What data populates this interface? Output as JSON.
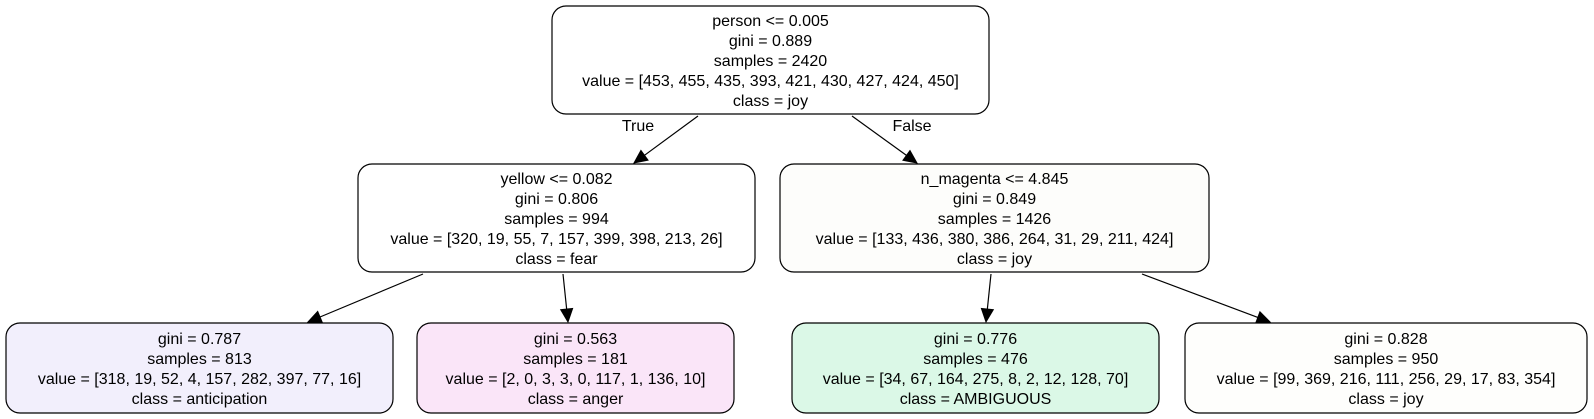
{
  "tree": {
    "nodes": {
      "root": {
        "lines": [
          "person <= 0.005",
          "gini = 0.889",
          "samples = 2420",
          "value = [453, 455, 435, 393, 421, 430, 427, 424, 450]",
          "class = joy"
        ],
        "fill": "#ffffff"
      },
      "left": {
        "lines": [
          "yellow <= 0.082",
          "gini = 0.806",
          "samples = 994",
          "value = [320, 19, 55, 7, 157, 399, 398, 213, 26]",
          "class = fear"
        ],
        "fill": "#ffffff"
      },
      "right": {
        "lines": [
          "n_magenta <= 4.845",
          "gini = 0.849",
          "samples = 1426",
          "value = [133, 436, 380, 386, 264, 31, 29, 211, 424]",
          "class = joy"
        ],
        "fill": "#fdfdfb"
      },
      "leaf_ll": {
        "lines": [
          "gini = 0.787",
          "samples = 813",
          "value = [318, 19, 52, 4, 157, 282, 397, 77, 16]",
          "class = anticipation"
        ],
        "fill": "#f2effc"
      },
      "leaf_lr": {
        "lines": [
          "gini = 0.563",
          "samples = 181",
          "value = [2, 0, 3, 3, 0, 117, 1, 136, 10]",
          "class = anger"
        ],
        "fill": "#fae5f8"
      },
      "leaf_rl": {
        "lines": [
          "gini = 0.776",
          "samples = 476",
          "value = [34, 67, 164, 275, 8, 2, 12, 128, 70]",
          "class = AMBIGUOUS"
        ],
        "fill": "#dbf8e7"
      },
      "leaf_rr": {
        "lines": [
          "gini = 0.828",
          "samples = 950",
          "value = [99, 369, 216, 111, 256, 29, 17, 83, 354]",
          "class = joy"
        ],
        "fill": "#fefefc"
      }
    },
    "edges": [
      {
        "from": "root",
        "to": "left",
        "label": "True"
      },
      {
        "from": "root",
        "to": "right",
        "label": "False"
      },
      {
        "from": "left",
        "to": "leaf_ll",
        "label": ""
      },
      {
        "from": "left",
        "to": "leaf_lr",
        "label": ""
      },
      {
        "from": "right",
        "to": "leaf_rl",
        "label": ""
      },
      {
        "from": "right",
        "to": "leaf_rr",
        "label": ""
      }
    ]
  }
}
